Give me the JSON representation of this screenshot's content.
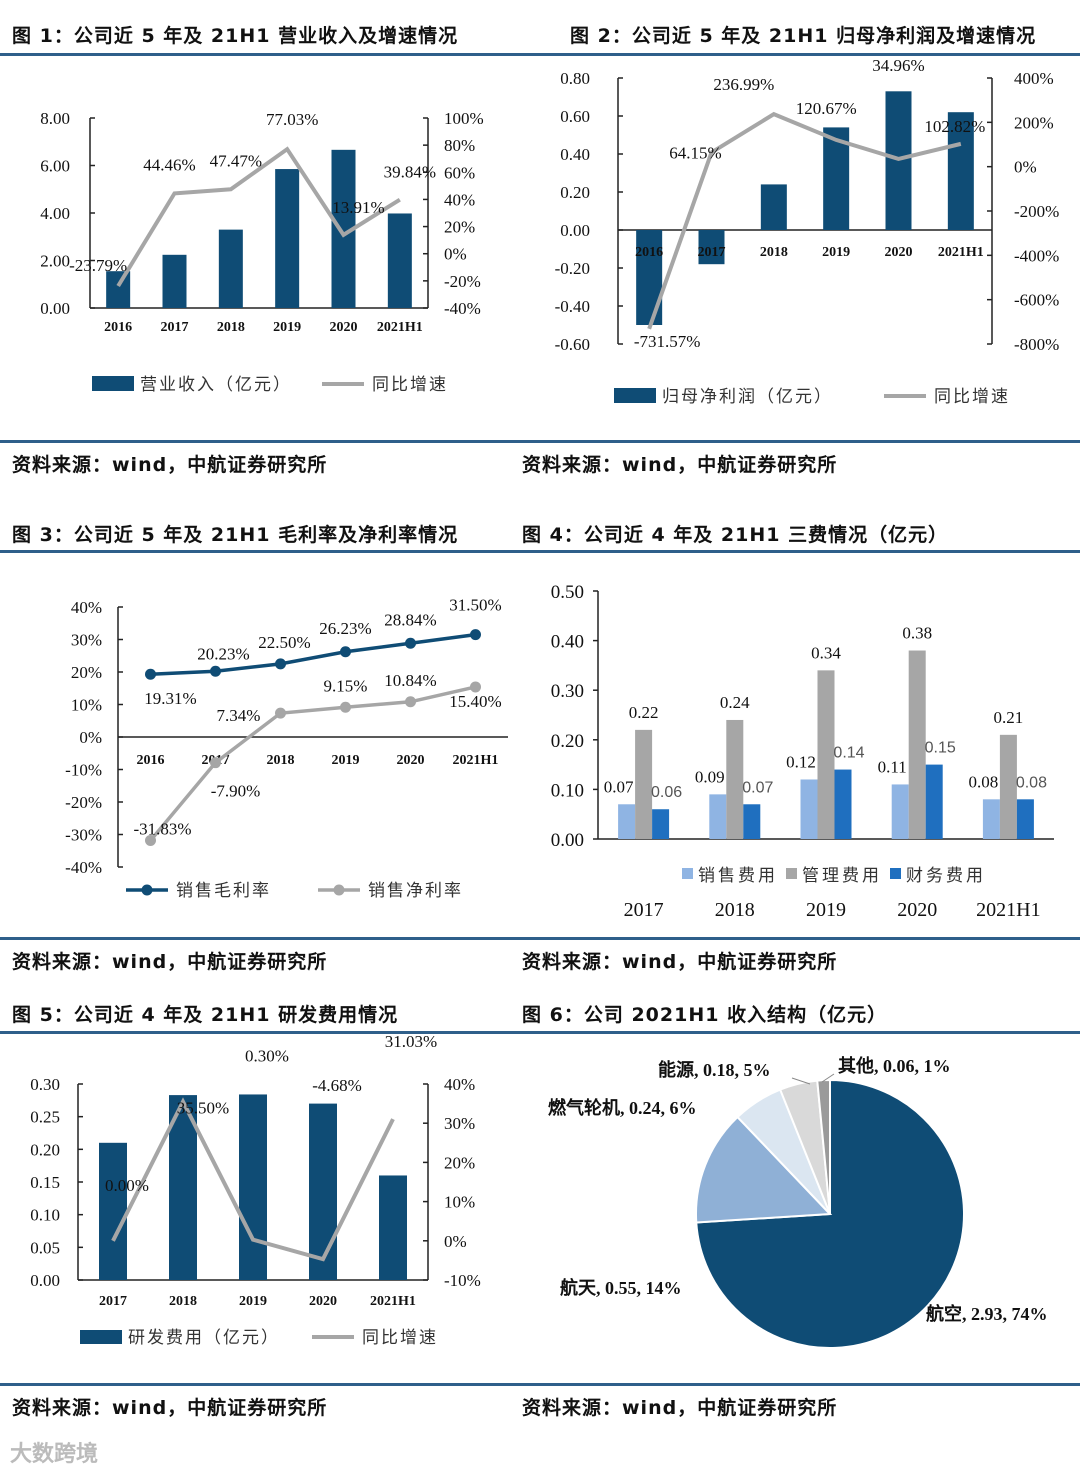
{
  "colors": {
    "navy": "#0f4c75",
    "gray": "#a6a6a6",
    "lightblue": "#8fb4e3",
    "blue": "#1f6fbf",
    "rule": "#2f5f8a"
  },
  "watermark": "大数跨境",
  "figures": {
    "fig1": {
      "title": "图 1：公司近 5 年及 21H1 营业收入及增速情况",
      "source": "资料来源：wind，中航证券研究所",
      "chart_data": {
        "type": "bar+line",
        "categories": [
          "2016",
          "2017",
          "2018",
          "2019",
          "2020",
          "2021H1"
        ],
        "series": [
          {
            "name": "营业收入（亿元）",
            "kind": "bar",
            "axis": "left",
            "values": [
              1.55,
              2.24,
              3.3,
              5.85,
              6.66,
              3.98
            ]
          },
          {
            "name": "同比增速",
            "kind": "line",
            "axis": "right",
            "values": [
              -23.79,
              44.46,
              47.47,
              77.03,
              13.91,
              39.84
            ],
            "labels": [
              "-23.79%",
              "44.46%",
              "47.47%",
              "77.03%",
              "13.91%",
              "39.84%"
            ]
          }
        ],
        "left_ticks": [
          "0.00",
          "2.00",
          "4.00",
          "6.00",
          "8.00"
        ],
        "left_range": [
          0,
          8
        ],
        "right_ticks": [
          "-40%",
          "-20%",
          "0%",
          "20%",
          "40%",
          "60%",
          "80%",
          "100%"
        ],
        "right_range": [
          -40,
          100
        ]
      }
    },
    "fig2": {
      "title": "图 2：公司近 5 年及 21H1 归母净利润及增速情况",
      "source": "资料来源：wind，中航证券研究所",
      "chart_data": {
        "type": "bar+line",
        "categories": [
          "2016",
          "2017",
          "2018",
          "2019",
          "2020",
          "2021H1"
        ],
        "series": [
          {
            "name": "归母净利润（亿元）",
            "kind": "bar",
            "axis": "left",
            "values": [
              -0.5,
              -0.18,
              0.24,
              0.54,
              0.73,
              0.62
            ]
          },
          {
            "name": "同比增速",
            "kind": "line",
            "axis": "right",
            "values": [
              -731.57,
              64.15,
              236.99,
              120.67,
              34.96,
              102.82
            ],
            "labels": [
              "-731.57%",
              "64.15%",
              "236.99%",
              "120.67%",
              "34.96%",
              "102.82%"
            ]
          }
        ],
        "left_ticks": [
          "-0.60",
          "-0.40",
          "-0.20",
          "0.00",
          "0.20",
          "0.40",
          "0.60",
          "0.80"
        ],
        "left_range": [
          -0.6,
          0.8
        ],
        "right_ticks": [
          "-800%",
          "-600%",
          "-400%",
          "-200%",
          "0%",
          "200%",
          "400%"
        ],
        "right_range": [
          -800,
          400
        ]
      }
    },
    "fig3": {
      "title": "图 3：公司近 5 年及 21H1 毛利率及净利率情况",
      "source": "资料来源：wind，中航证券研究所",
      "chart_data": {
        "type": "line",
        "categories": [
          "2016",
          "2017",
          "2018",
          "2019",
          "2020",
          "2021H1"
        ],
        "series": [
          {
            "name": "销售毛利率",
            "values": [
              19.31,
              20.23,
              22.5,
              26.23,
              28.84,
              31.5
            ],
            "labels": [
              "19.31%",
              "20.23%",
              "22.50%",
              "26.23%",
              "28.84%",
              "31.50%"
            ]
          },
          {
            "name": "销售净利率",
            "values": [
              -31.83,
              -7.9,
              7.34,
              9.15,
              10.84,
              15.4
            ],
            "labels": [
              "-31.83%",
              "-7.90%",
              "7.34%",
              "9.15%",
              "10.84%",
              "15.40%"
            ]
          }
        ],
        "ticks": [
          "-40%",
          "-30%",
          "-20%",
          "-10%",
          "0%",
          "10%",
          "20%",
          "30%",
          "40%"
        ],
        "range": [
          -40,
          40
        ]
      }
    },
    "fig4": {
      "title": "图 4：公司近 4 年及 21H1 三费情况（亿元）",
      "source": "资料来源：wind，中航证券研究所",
      "chart_data": {
        "type": "bar",
        "categories": [
          "2017",
          "2018",
          "2019",
          "2020",
          "2021H1"
        ],
        "series": [
          {
            "name": "销售费用",
            "values": [
              0.07,
              0.09,
              0.12,
              0.11,
              0.08
            ],
            "labels": [
              "0.07",
              "0.09",
              "0.12",
              "0.11",
              "0.08"
            ]
          },
          {
            "name": "管理费用",
            "values": [
              0.22,
              0.24,
              0.34,
              0.38,
              0.21
            ],
            "labels": [
              "0.22",
              "0.24",
              "0.34",
              "0.38",
              "0.21"
            ]
          },
          {
            "name": "财务费用",
            "values": [
              0.06,
              0.07,
              0.14,
              0.15,
              0.08
            ],
            "labels": [
              "0.06",
              "0.07",
              "0.14",
              "0.15",
              "0.08"
            ]
          }
        ],
        "ticks": [
          "0.00",
          "0.10",
          "0.20",
          "0.30",
          "0.40",
          "0.50"
        ],
        "range": [
          0,
          0.5
        ]
      }
    },
    "fig5": {
      "title": "图 5：公司近 4 年及 21H1 研发费用情况",
      "source": "资料来源：wind，中航证券研究所",
      "chart_data": {
        "type": "bar+line",
        "categories": [
          "2017",
          "2018",
          "2019",
          "2020",
          "2021H1"
        ],
        "series": [
          {
            "name": "研发费用（亿元）",
            "kind": "bar",
            "axis": "left",
            "values": [
              0.21,
              0.283,
              0.284,
              0.27,
              0.16
            ]
          },
          {
            "name": "同比增速",
            "kind": "line",
            "axis": "right",
            "values": [
              0.0,
              35.5,
              0.3,
              -4.68,
              31.03
            ],
            "labels": [
              "0.00%",
              "35.50%",
              "0.30%",
              "-4.68%",
              "31.03%"
            ]
          }
        ],
        "left_ticks": [
          "0.00",
          "0.05",
          "0.10",
          "0.15",
          "0.20",
          "0.25",
          "0.30"
        ],
        "left_range": [
          0,
          0.3
        ],
        "right_ticks": [
          "-10%",
          "0%",
          "10%",
          "20%",
          "30%",
          "40%"
        ],
        "right_range": [
          -10,
          40
        ]
      }
    },
    "fig6": {
      "title": "图 6：公司 2021H1 收入结构（亿元）",
      "source": "资料来源：wind，中航证券研究所",
      "chart_data": {
        "type": "pie",
        "slices": [
          {
            "name": "航空",
            "value": 2.93,
            "pct": 74,
            "label": "航空, 2.93, 74%",
            "color": "#0f4c75"
          },
          {
            "name": "航天",
            "value": 0.55,
            "pct": 14,
            "label": "航天, 0.55, 14%",
            "color": "#8fb0d6"
          },
          {
            "name": "燃气轮机",
            "value": 0.24,
            "pct": 6,
            "label": "燃气轮机, 0.24, 6%",
            "color": "#dbe6f1"
          },
          {
            "name": "能源",
            "value": 0.18,
            "pct": 5,
            "label": "能源, 0.18, 5%",
            "color": "#d9d9d9"
          },
          {
            "name": "其他",
            "value": 0.06,
            "pct": 1,
            "label": "其他, 0.06, 1%",
            "color": "#9a9a9a"
          }
        ]
      }
    }
  }
}
